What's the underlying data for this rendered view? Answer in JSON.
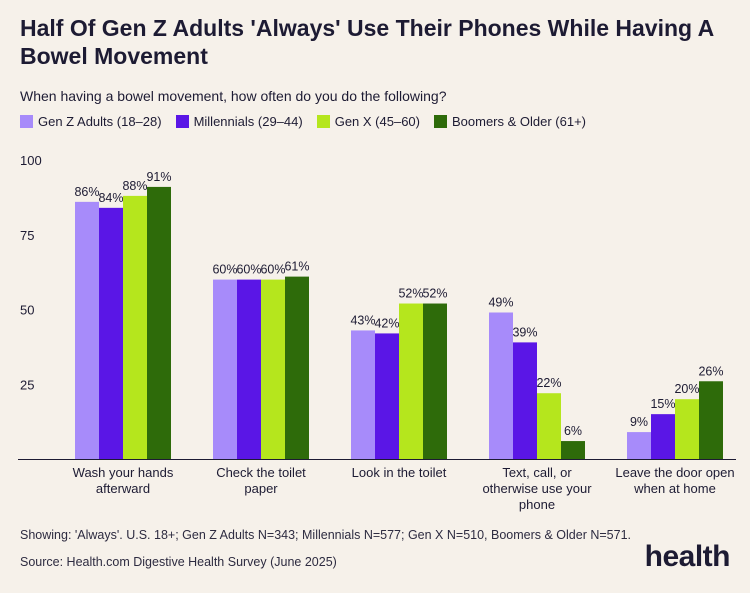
{
  "title": "Half Of Gen Z Adults 'Always' Use Their Phones While Having A Bowel Movement",
  "subtitle": "When having a bowel movement, how often do you do the following?",
  "footnote": "Showing: 'Always'. U.S. 18+; Gen Z Adults N=343; Millennials N=577; Gen X N=510, Boomers & Older N=571.",
  "source": "Source: Health.com Digestive Health Survey (June 2025)",
  "logo": "health",
  "chart_data": {
    "type": "bar",
    "categories": [
      [
        "Wash your hands",
        "afterward"
      ],
      [
        "Check the toilet",
        "paper"
      ],
      [
        "Look in the toilet"
      ],
      [
        "Text, call, or",
        "otherwise use your",
        "phone"
      ],
      [
        "Leave the door open",
        "when at home"
      ]
    ],
    "series": [
      {
        "name": "Gen Z Adults (18–28)",
        "color": "#a78bfa",
        "values": [
          86,
          60,
          43,
          49,
          9
        ]
      },
      {
        "name": "Millennials (29–44)",
        "color": "#5a16e6",
        "values": [
          84,
          60,
          42,
          39,
          15
        ]
      },
      {
        "name": "Gen X (45–60)",
        "color": "#b5e61d",
        "values": [
          88,
          60,
          52,
          22,
          20
        ]
      },
      {
        "name": "Boomers & Older (61+)",
        "color": "#2e6b0a",
        "values": [
          91,
          61,
          52,
          6,
          26
        ]
      }
    ],
    "ylim": [
      0,
      100
    ],
    "yticks": [
      25,
      50,
      75,
      100
    ],
    "value_suffix": "%",
    "grid": false,
    "legend_position": "top-left"
  }
}
